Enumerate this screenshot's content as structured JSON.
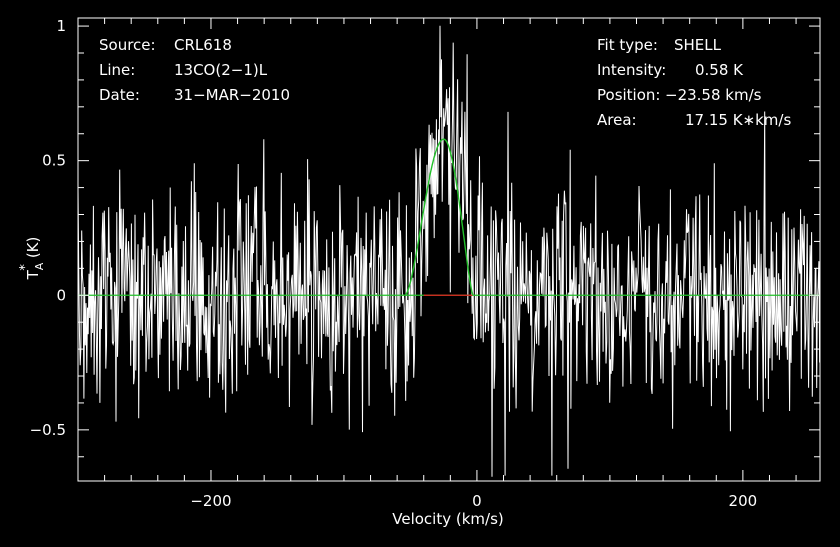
{
  "chart_data": {
    "type": "line",
    "xlabel": "Velocity (km/s)",
    "ylabel": {
      "base": "T",
      "sub": "A",
      "sup": "*",
      "unit": "(K)"
    },
    "xlim": [
      -300,
      258
    ],
    "ylim": [
      -0.69,
      1.03
    ],
    "xticks_major": [
      -200,
      0,
      200
    ],
    "xtick_labels": [
      "−200",
      "0",
      "200"
    ],
    "yticks_major": [
      -0.5,
      0,
      0.5,
      1
    ],
    "ytick_labels": [
      "−0.5",
      "0",
      "0.5",
      "1"
    ],
    "grid": false,
    "info_left": [
      {
        "key": "Source:",
        "value": "CRL618"
      },
      {
        "key": "Line:",
        "value": "13CO(2−1)L"
      },
      {
        "key": "Date:",
        "value": "31−MAR−2010"
      }
    ],
    "info_right": [
      {
        "key": "Fit type:",
        "value": "SHELL"
      },
      {
        "key": "Intensity:",
        "value": "0.58 K"
      },
      {
        "key": "Position:",
        "value": "−23.58 km/s"
      },
      {
        "key": "Area:",
        "value": "17.15 K∗km/s"
      }
    ],
    "series": [
      {
        "kind": "spectrum",
        "noise_rms": 0.21,
        "x_range": [
          -300,
          258
        ],
        "channel_width_kms": 0.55,
        "line_center": -25,
        "line_peak": 0.6,
        "line_width": 48
      },
      {
        "kind": "shell_fit",
        "intensity": 0.58,
        "position": -23.58,
        "area": 17.15,
        "x_start": -54,
        "x_end": -3,
        "x_peak": -25
      },
      {
        "kind": "fit_baseline",
        "y": 0,
        "x_range": [
          -300,
          258
        ]
      },
      {
        "kind": "fit_window",
        "y": 0,
        "x_range": [
          -40,
          -3
        ]
      }
    ],
    "colors": {
      "background": "#000000",
      "frame": "#ffffff",
      "spectrum": "#ffffff",
      "fit": "#22c02a",
      "fit_window": "#e02020",
      "text": "#ffffff"
    }
  }
}
